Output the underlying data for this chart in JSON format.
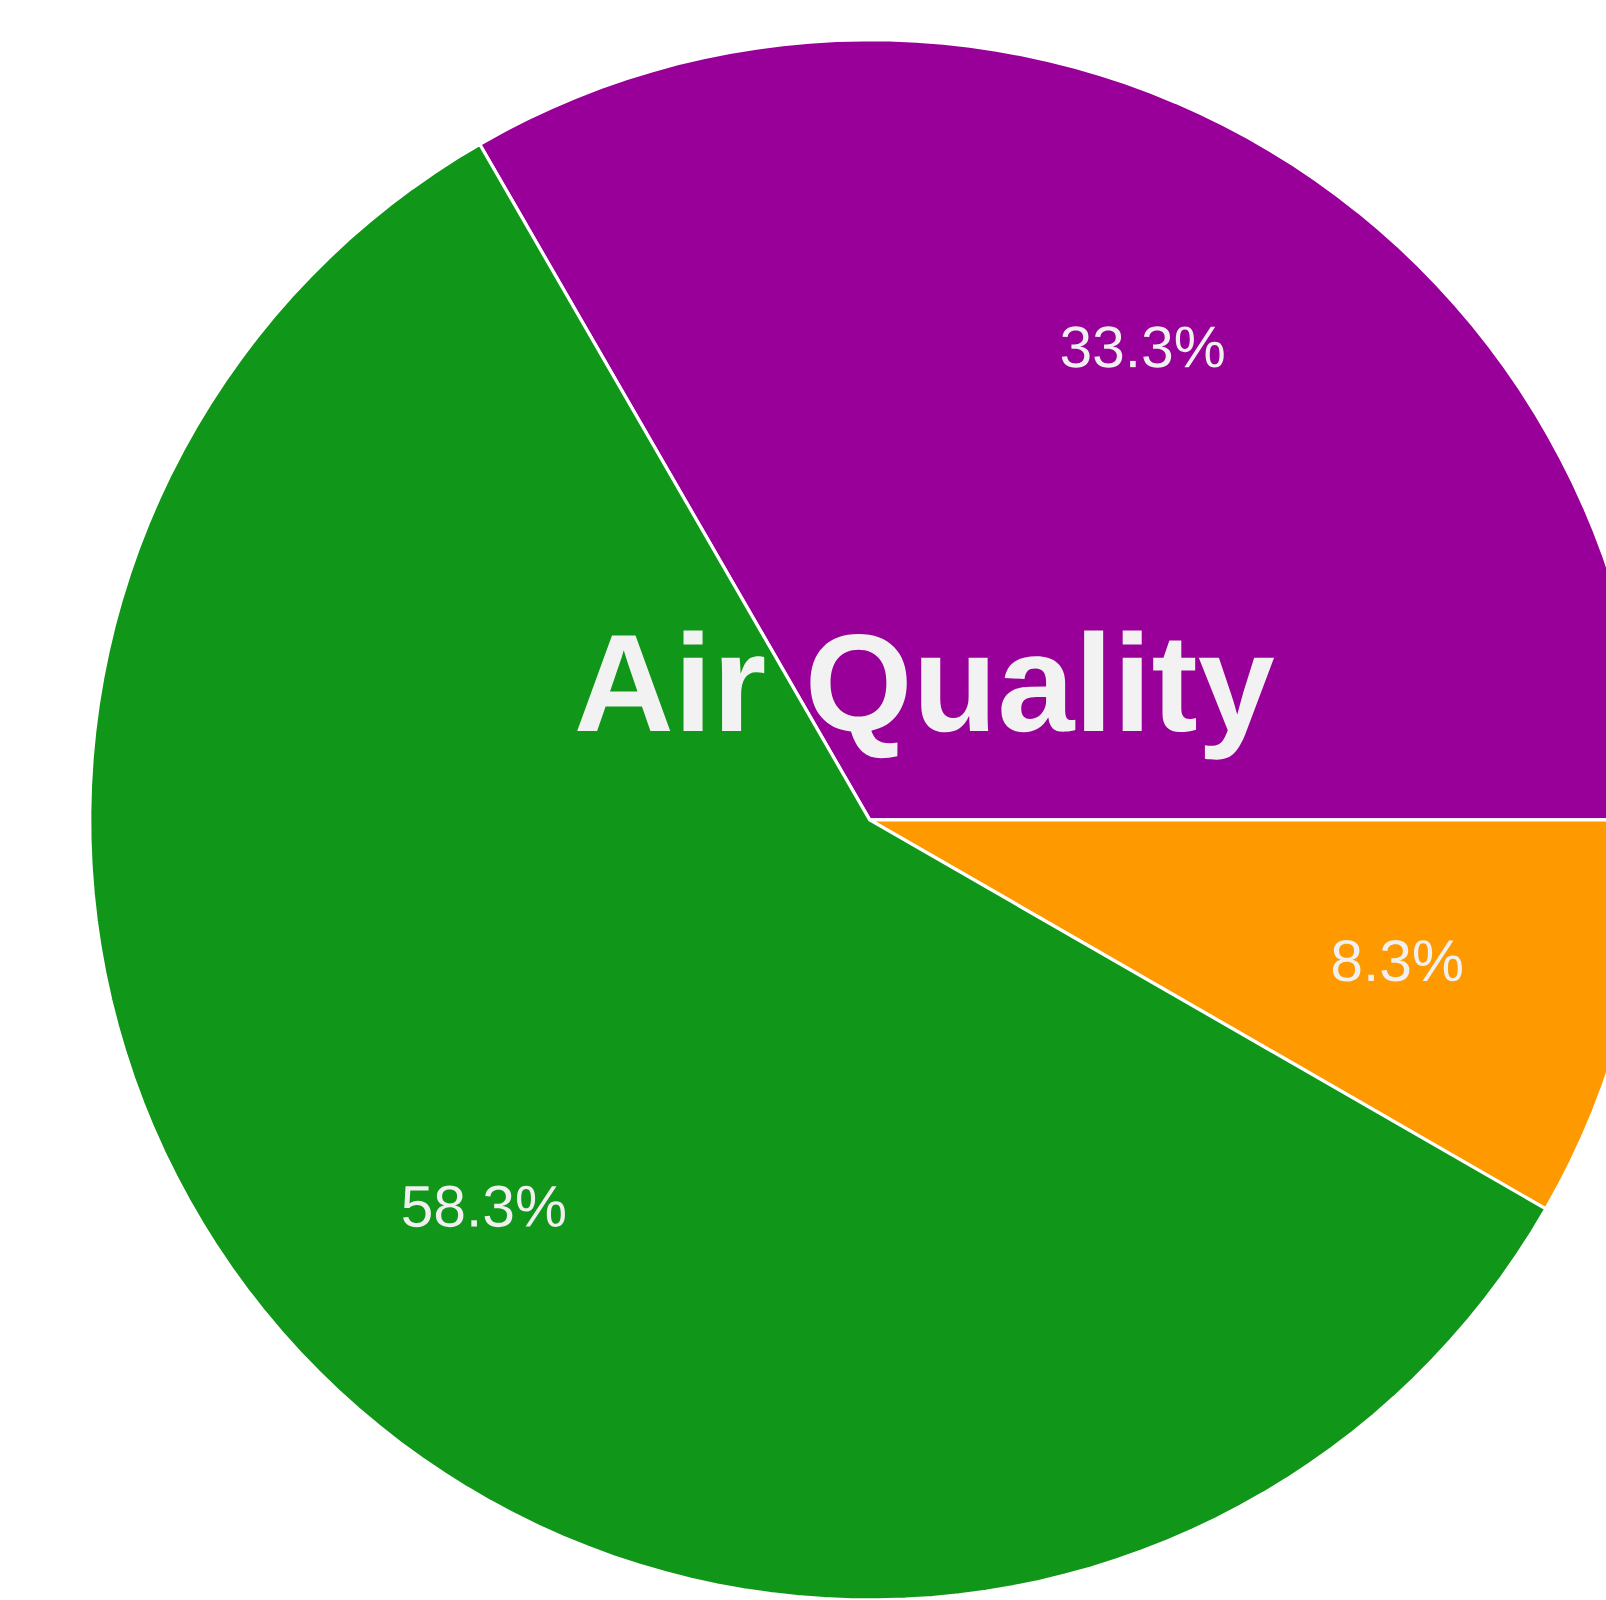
{
  "chart_data": {
    "type": "pie",
    "title": "Air Quality",
    "categories": [
      null,
      null,
      null
    ],
    "values": [
      33.3,
      8.3,
      58.3
    ],
    "colors": [
      "#990099",
      "#ff9900",
      "#109618"
    ],
    "value_labels": [
      "33.3%",
      "8.3%",
      "58.3%"
    ]
  }
}
